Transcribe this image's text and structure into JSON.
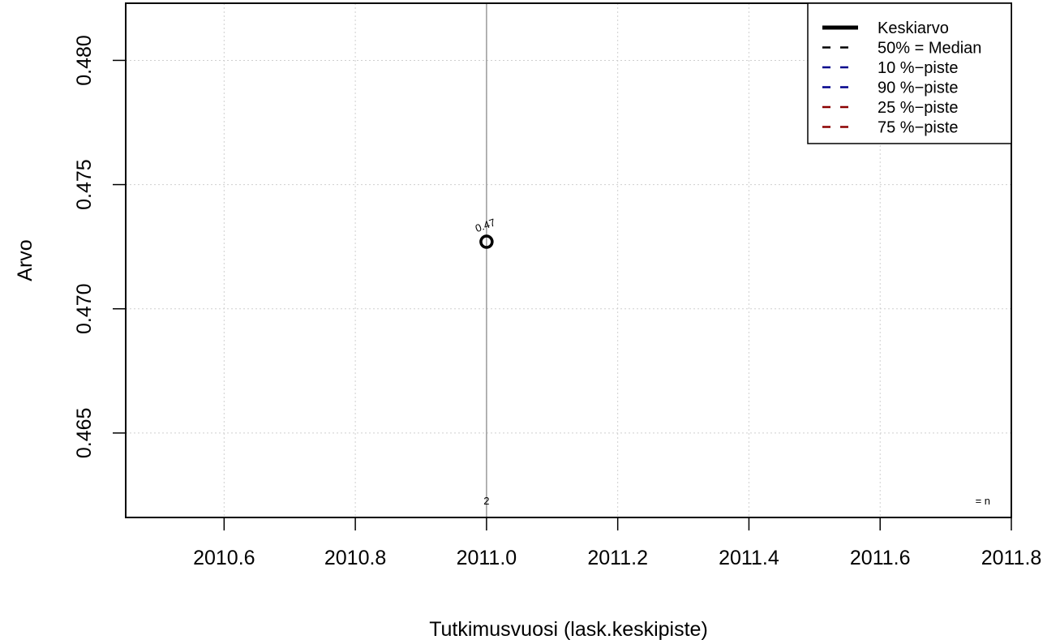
{
  "chart_data": {
    "type": "scatter",
    "xlabel": "Tutkimusvuosi (lask.keskipiste)",
    "ylabel": "Arvo",
    "xlim": [
      2010.45,
      2011.8
    ],
    "ylim": [
      0.4616,
      0.4823
    ],
    "x_ticks": [
      2010.6,
      2010.8,
      2011.0,
      2011.2,
      2011.4,
      2011.6,
      2011.8
    ],
    "x_tick_labels": [
      "2010.6",
      "2010.8",
      "2011.0",
      "2011.2",
      "2011.4",
      "2011.6",
      "2011.8"
    ],
    "y_ticks": [
      0.465,
      0.47,
      0.475,
      0.48
    ],
    "y_tick_labels": [
      "0.465",
      "0.470",
      "0.475",
      "0.480"
    ],
    "grid": true,
    "vertical_marker_x": 2011.0,
    "points": [
      {
        "x": 2011.0,
        "y": 0.4727,
        "label": "0.47",
        "n": "2"
      }
    ],
    "n_label": "= n",
    "legend": {
      "position": "top-right",
      "entries": [
        {
          "label": "Keskiarvo",
          "color": "#000000",
          "style": "solid-thick"
        },
        {
          "label": "50% = Median",
          "color": "#000000",
          "style": "dashed"
        },
        {
          "label": "10 %−piste",
          "color": "#00008B",
          "style": "dashed"
        },
        {
          "label": "90 %−piste",
          "color": "#00008B",
          "style": "dashed"
        },
        {
          "label": "25 %−piste",
          "color": "#8B0000",
          "style": "dashed"
        },
        {
          "label": "75 %−piste",
          "color": "#8B0000",
          "style": "dashed"
        }
      ]
    }
  }
}
